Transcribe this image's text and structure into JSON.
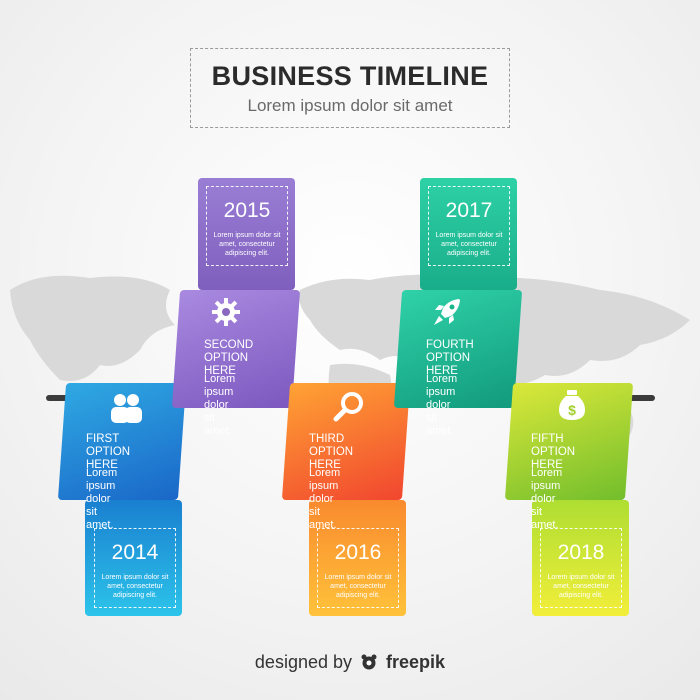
{
  "header": {
    "title": "BUSINESS TIMELINE",
    "subtitle": "Lorem ipsum dolor sit amet"
  },
  "steps": [
    {
      "year": "2014",
      "desc": "Lorem ipsum dolor sit amet, consectetur adipiscing elit.",
      "option": "FIRST\nOPTION HERE",
      "text": "Lorem ipsum\ndolor sit amet.",
      "icon": "people-icon",
      "color": "#1d8fcf"
    },
    {
      "year": "2015",
      "desc": "Lorem ipsum dolor sit amet, consectetur adipiscing elit.",
      "option": "SECOND\nOPTION HERE",
      "text": "Lorem ipsum\ndolor sit amet.",
      "icon": "gear-icon",
      "color": "#8a68c2"
    },
    {
      "year": "2016",
      "desc": "Lorem ipsum dolor sit amet, consectetur adipiscing elit.",
      "option": "THIRD\nOPTION HERE",
      "text": "Lorem ipsum\ndolor sit amet.",
      "icon": "magnifier-icon",
      "color": "#f47a2c"
    },
    {
      "year": "2017",
      "desc": "Lorem ipsum dolor sit amet, consectetur adipiscing elit.",
      "option": "FOURTH\nOPTION HERE",
      "text": "Lorem ipsum\ndolor sit amet.",
      "icon": "rocket-icon",
      "color": "#1bb58a"
    },
    {
      "year": "2018",
      "desc": "Lorem ipsum dolor sit amet, consectetur adipiscing elit.",
      "option": "FIFTH\nOPTION HERE",
      "text": "Lorem ipsum\ndolor sit amet.",
      "icon": "money-bag-icon",
      "color": "#a3cf2b"
    }
  ],
  "footer": {
    "prefix": "designed by",
    "brand": "freepik"
  }
}
